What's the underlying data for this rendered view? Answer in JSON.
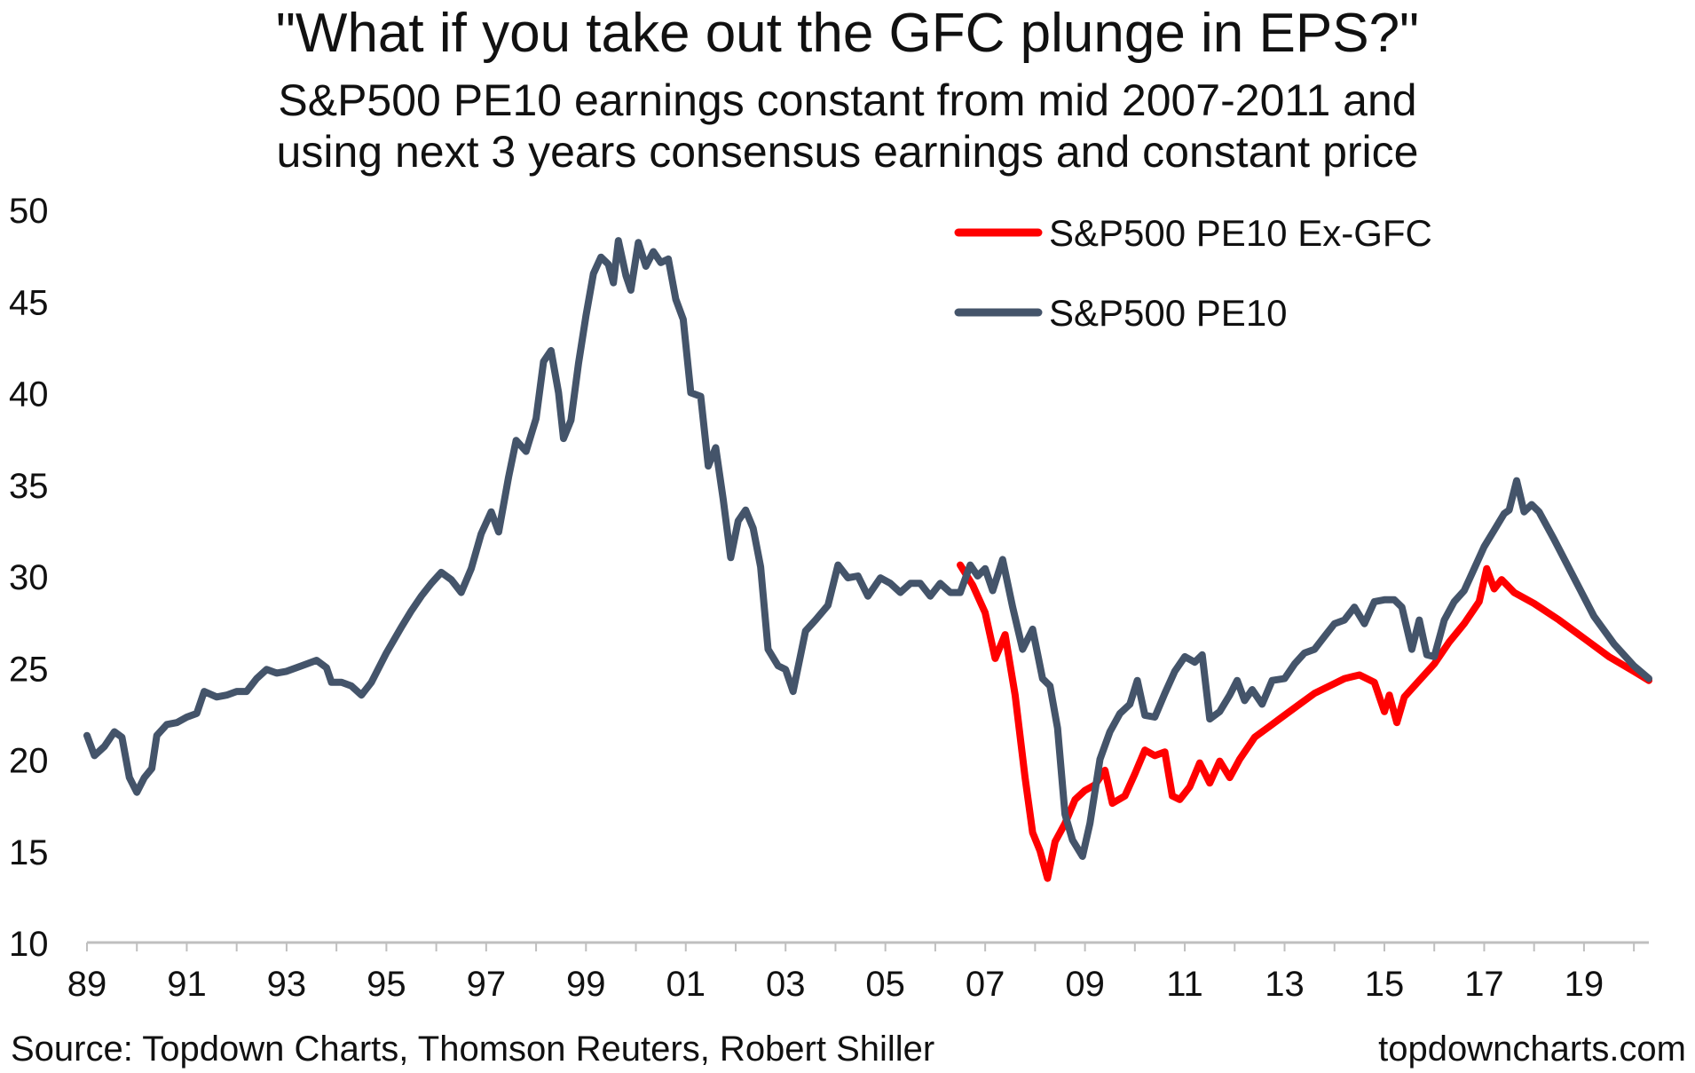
{
  "header": {
    "title": "\"What if you take out the GFC plunge in EPS?\"",
    "subtitle_line1": "S&P500 PE10 earnings constant from mid 2007-2011 and",
    "subtitle_line2": "using next 3 years consensus earnings and constant price"
  },
  "footer": {
    "source": "Source: Topdown Charts, Thomson Reuters, Robert Shiller",
    "website": "topdowncharts.com"
  },
  "chart_data": {
    "type": "line",
    "xlim": [
      1989.0,
      2020.3
    ],
    "ylim": [
      10,
      50
    ],
    "y_ticks": [
      10,
      15,
      20,
      25,
      30,
      35,
      40,
      45,
      50
    ],
    "x_ticks": [
      {
        "year": 1989,
        "label": "89"
      },
      {
        "year": 1991,
        "label": "91"
      },
      {
        "year": 1993,
        "label": "93"
      },
      {
        "year": 1995,
        "label": "95"
      },
      {
        "year": 1997,
        "label": "97"
      },
      {
        "year": 1999,
        "label": "99"
      },
      {
        "year": 2001,
        "label": "01"
      },
      {
        "year": 2003,
        "label": "03"
      },
      {
        "year": 2005,
        "label": "05"
      },
      {
        "year": 2007,
        "label": "07"
      },
      {
        "year": 2009,
        "label": "09"
      },
      {
        "year": 2011,
        "label": "11"
      },
      {
        "year": 2013,
        "label": "13"
      },
      {
        "year": 2015,
        "label": "15"
      },
      {
        "year": 2017,
        "label": "17"
      },
      {
        "year": 2019,
        "label": "19"
      }
    ],
    "grid": false,
    "legend_position": "top-right",
    "series": [
      {
        "name": "S&P500 PE10 Ex-GFC",
        "color": "#ff0000",
        "points": [
          [
            2006.5,
            30.6
          ],
          [
            2006.75,
            29.5
          ],
          [
            2007.0,
            28.0
          ],
          [
            2007.2,
            25.5
          ],
          [
            2007.4,
            26.8
          ],
          [
            2007.6,
            23.5
          ],
          [
            2007.8,
            19.0
          ],
          [
            2007.95,
            16.0
          ],
          [
            2008.1,
            15.0
          ],
          [
            2008.25,
            13.5
          ],
          [
            2008.4,
            15.5
          ],
          [
            2008.6,
            16.5
          ],
          [
            2008.8,
            17.8
          ],
          [
            2009.0,
            18.3
          ],
          [
            2009.2,
            18.6
          ],
          [
            2009.4,
            19.4
          ],
          [
            2009.55,
            17.6
          ],
          [
            2009.8,
            18.0
          ],
          [
            2010.0,
            19.2
          ],
          [
            2010.2,
            20.5
          ],
          [
            2010.4,
            20.2
          ],
          [
            2010.6,
            20.4
          ],
          [
            2010.75,
            18.0
          ],
          [
            2010.9,
            17.8
          ],
          [
            2011.1,
            18.5
          ],
          [
            2011.3,
            19.8
          ],
          [
            2011.5,
            18.7
          ],
          [
            2011.7,
            19.9
          ],
          [
            2011.9,
            19.0
          ],
          [
            2012.1,
            20.0
          ],
          [
            2012.4,
            21.2
          ],
          [
            2012.7,
            21.8
          ],
          [
            2013.0,
            22.4
          ],
          [
            2013.3,
            23.0
          ],
          [
            2013.6,
            23.6
          ],
          [
            2013.9,
            24.0
          ],
          [
            2014.2,
            24.4
          ],
          [
            2014.5,
            24.6
          ],
          [
            2014.8,
            24.2
          ],
          [
            2015.0,
            22.6
          ],
          [
            2015.1,
            23.5
          ],
          [
            2015.25,
            22.0
          ],
          [
            2015.4,
            23.4
          ],
          [
            2015.7,
            24.3
          ],
          [
            2016.0,
            25.2
          ],
          [
            2016.3,
            26.4
          ],
          [
            2016.6,
            27.4
          ],
          [
            2016.9,
            28.6
          ],
          [
            2017.05,
            30.4
          ],
          [
            2017.2,
            29.3
          ],
          [
            2017.35,
            29.8
          ],
          [
            2017.6,
            29.1
          ],
          [
            2018.0,
            28.5
          ],
          [
            2018.5,
            27.6
          ],
          [
            2019.0,
            26.6
          ],
          [
            2019.5,
            25.6
          ],
          [
            2020.0,
            24.8
          ],
          [
            2020.3,
            24.3
          ]
        ]
      },
      {
        "name": "S&P500 PE10",
        "color": "#44546a",
        "points": [
          [
            1989.0,
            21.3
          ],
          [
            1989.15,
            20.2
          ],
          [
            1989.35,
            20.7
          ],
          [
            1989.55,
            21.5
          ],
          [
            1989.7,
            21.2
          ],
          [
            1989.85,
            19.0
          ],
          [
            1990.0,
            18.2
          ],
          [
            1990.15,
            19.0
          ],
          [
            1990.3,
            19.5
          ],
          [
            1990.4,
            21.3
          ],
          [
            1990.6,
            21.9
          ],
          [
            1990.8,
            22.0
          ],
          [
            1991.0,
            22.3
          ],
          [
            1991.2,
            22.5
          ],
          [
            1991.35,
            23.7
          ],
          [
            1991.6,
            23.4
          ],
          [
            1991.8,
            23.5
          ],
          [
            1992.0,
            23.7
          ],
          [
            1992.2,
            23.7
          ],
          [
            1992.4,
            24.4
          ],
          [
            1992.6,
            24.9
          ],
          [
            1992.8,
            24.7
          ],
          [
            1993.0,
            24.8
          ],
          [
            1993.3,
            25.1
          ],
          [
            1993.6,
            25.4
          ],
          [
            1993.8,
            25.0
          ],
          [
            1993.9,
            24.2
          ],
          [
            1994.1,
            24.2
          ],
          [
            1994.3,
            24.0
          ],
          [
            1994.5,
            23.5
          ],
          [
            1994.7,
            24.2
          ],
          [
            1995.0,
            25.8
          ],
          [
            1995.3,
            27.2
          ],
          [
            1995.5,
            28.1
          ],
          [
            1995.7,
            28.9
          ],
          [
            1995.9,
            29.6
          ],
          [
            1996.1,
            30.2
          ],
          [
            1996.3,
            29.8
          ],
          [
            1996.5,
            29.1
          ],
          [
            1996.7,
            30.4
          ],
          [
            1996.9,
            32.3
          ],
          [
            1997.1,
            33.5
          ],
          [
            1997.25,
            32.4
          ],
          [
            1997.45,
            35.4
          ],
          [
            1997.6,
            37.4
          ],
          [
            1997.8,
            36.8
          ],
          [
            1998.0,
            38.6
          ],
          [
            1998.15,
            41.7
          ],
          [
            1998.3,
            42.3
          ],
          [
            1998.45,
            40.0
          ],
          [
            1998.55,
            37.5
          ],
          [
            1998.7,
            38.5
          ],
          [
            1998.85,
            41.6
          ],
          [
            1999.0,
            44.2
          ],
          [
            1999.15,
            46.5
          ],
          [
            1999.3,
            47.4
          ],
          [
            1999.45,
            47.0
          ],
          [
            1999.55,
            46.0
          ],
          [
            1999.65,
            48.3
          ],
          [
            1999.8,
            46.4
          ],
          [
            1999.9,
            45.6
          ],
          [
            2000.05,
            48.2
          ],
          [
            2000.2,
            46.9
          ],
          [
            2000.35,
            47.7
          ],
          [
            2000.5,
            47.1
          ],
          [
            2000.65,
            47.3
          ],
          [
            2000.8,
            45.1
          ],
          [
            2000.95,
            44.0
          ],
          [
            2001.1,
            40.0
          ],
          [
            2001.3,
            39.8
          ],
          [
            2001.45,
            36.0
          ],
          [
            2001.6,
            37.0
          ],
          [
            2001.75,
            34.2
          ],
          [
            2001.9,
            31.0
          ],
          [
            2002.05,
            33.0
          ],
          [
            2002.2,
            33.6
          ],
          [
            2002.35,
            32.6
          ],
          [
            2002.5,
            30.5
          ],
          [
            2002.65,
            26.0
          ],
          [
            2002.85,
            25.1
          ],
          [
            2003.0,
            24.9
          ],
          [
            2003.15,
            23.7
          ],
          [
            2003.4,
            27.0
          ],
          [
            2003.6,
            27.6
          ],
          [
            2003.85,
            28.4
          ],
          [
            2004.05,
            30.6
          ],
          [
            2004.25,
            29.9
          ],
          [
            2004.45,
            30.0
          ],
          [
            2004.65,
            28.9
          ],
          [
            2004.9,
            29.9
          ],
          [
            2005.1,
            29.6
          ],
          [
            2005.3,
            29.1
          ],
          [
            2005.5,
            29.6
          ],
          [
            2005.7,
            29.6
          ],
          [
            2005.9,
            28.9
          ],
          [
            2006.1,
            29.6
          ],
          [
            2006.3,
            29.1
          ],
          [
            2006.5,
            29.1
          ],
          [
            2006.7,
            30.6
          ],
          [
            2006.85,
            30.0
          ],
          [
            2007.0,
            30.4
          ],
          [
            2007.15,
            29.2
          ],
          [
            2007.35,
            30.9
          ],
          [
            2007.55,
            28.3
          ],
          [
            2007.75,
            26.0
          ],
          [
            2007.95,
            27.1
          ],
          [
            2008.15,
            24.4
          ],
          [
            2008.3,
            24.0
          ],
          [
            2008.45,
            21.7
          ],
          [
            2008.6,
            17.0
          ],
          [
            2008.75,
            15.6
          ],
          [
            2008.95,
            14.7
          ],
          [
            2009.1,
            16.5
          ],
          [
            2009.3,
            20.0
          ],
          [
            2009.5,
            21.5
          ],
          [
            2009.7,
            22.5
          ],
          [
            2009.9,
            23.0
          ],
          [
            2010.05,
            24.3
          ],
          [
            2010.2,
            22.4
          ],
          [
            2010.4,
            22.3
          ],
          [
            2010.6,
            23.6
          ],
          [
            2010.8,
            24.8
          ],
          [
            2011.0,
            25.6
          ],
          [
            2011.2,
            25.3
          ],
          [
            2011.35,
            25.7
          ],
          [
            2011.5,
            22.2
          ],
          [
            2011.7,
            22.6
          ],
          [
            2011.9,
            23.5
          ],
          [
            2012.05,
            24.3
          ],
          [
            2012.2,
            23.2
          ],
          [
            2012.35,
            23.8
          ],
          [
            2012.55,
            23.0
          ],
          [
            2012.75,
            24.3
          ],
          [
            2013.0,
            24.4
          ],
          [
            2013.2,
            25.2
          ],
          [
            2013.4,
            25.8
          ],
          [
            2013.6,
            26.0
          ],
          [
            2013.8,
            26.7
          ],
          [
            2014.0,
            27.4
          ],
          [
            2014.2,
            27.6
          ],
          [
            2014.4,
            28.3
          ],
          [
            2014.6,
            27.4
          ],
          [
            2014.8,
            28.6
          ],
          [
            2015.0,
            28.7
          ],
          [
            2015.2,
            28.7
          ],
          [
            2015.35,
            28.3
          ],
          [
            2015.55,
            26.0
          ],
          [
            2015.7,
            27.6
          ],
          [
            2015.85,
            25.7
          ],
          [
            2016.0,
            25.6
          ],
          [
            2016.2,
            27.6
          ],
          [
            2016.4,
            28.6
          ],
          [
            2016.6,
            29.2
          ],
          [
            2016.8,
            30.4
          ],
          [
            2017.0,
            31.6
          ],
          [
            2017.2,
            32.5
          ],
          [
            2017.4,
            33.4
          ],
          [
            2017.5,
            33.6
          ],
          [
            2017.65,
            35.2
          ],
          [
            2017.8,
            33.5
          ],
          [
            2017.95,
            33.9
          ],
          [
            2018.1,
            33.5
          ],
          [
            2018.4,
            32.0
          ],
          [
            2018.8,
            29.9
          ],
          [
            2019.2,
            27.8
          ],
          [
            2019.6,
            26.3
          ],
          [
            2020.0,
            25.1
          ],
          [
            2020.3,
            24.4
          ]
        ]
      }
    ]
  }
}
